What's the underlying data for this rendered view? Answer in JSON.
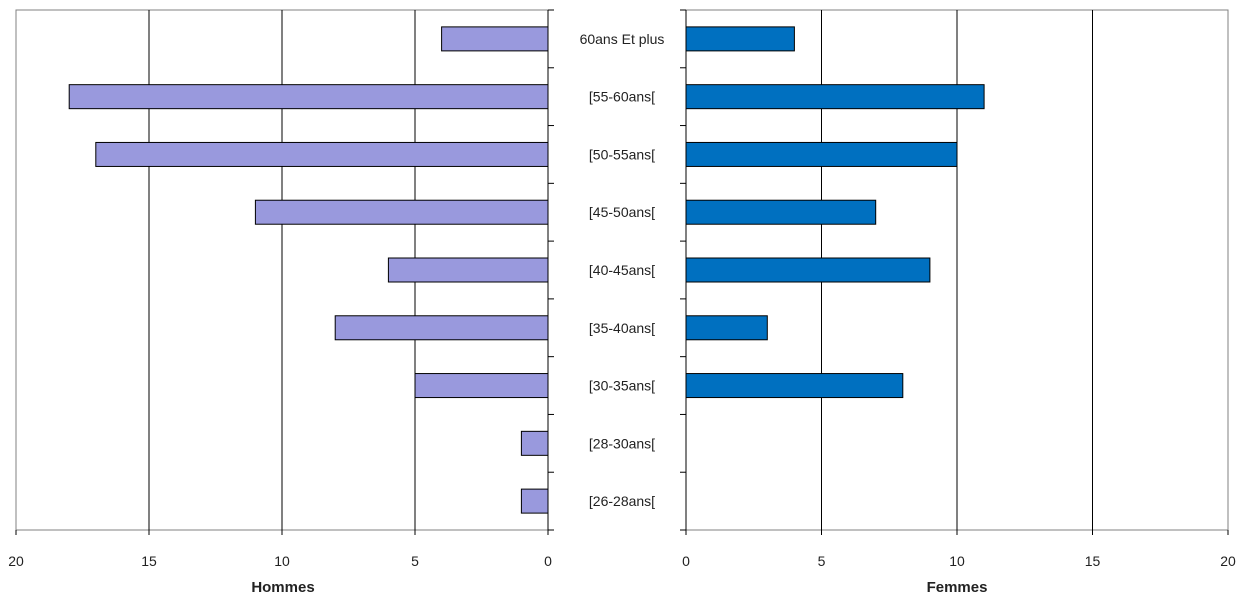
{
  "chart_data": {
    "type": "bar",
    "orientation": "horizontal",
    "layout": "population-pyramid",
    "categories": [
      "60ans Et plus",
      "[55-60ans[",
      "[50-55ans[",
      "[45-50ans[",
      "[40-45ans[",
      "[35-40ans[",
      "[30-35ans[",
      "[28-30ans[",
      "[26-28ans["
    ],
    "category_labels": [
      "60ans Et plus",
      "[55-60ans[",
      "[50-55ans[",
      "[45-50ans[",
      "[40-45ans[",
      "[35-40ans[",
      "[30-35ans[",
      "[28-30ans[",
      "[26-28ans["
    ],
    "series": [
      {
        "name": "Hommes",
        "values": [
          4,
          18,
          17,
          11,
          6,
          8,
          5,
          1,
          1
        ],
        "color": "#9999dd"
      },
      {
        "name": "Femmes",
        "values": [
          4,
          11,
          10,
          7,
          9,
          3,
          8,
          0,
          0
        ],
        "color": "#0070c0"
      }
    ],
    "xlim": [
      0,
      20
    ],
    "ticks": [
      0,
      5,
      10,
      15,
      20
    ],
    "left_axis_ticks": [
      "20",
      "15",
      "10",
      "5",
      "0"
    ],
    "right_axis_ticks": [
      "0",
      "5",
      "10",
      "15",
      "20"
    ],
    "left_xlabel": "Hommes",
    "right_xlabel": "Femmes",
    "grid": true,
    "legend": "none"
  }
}
